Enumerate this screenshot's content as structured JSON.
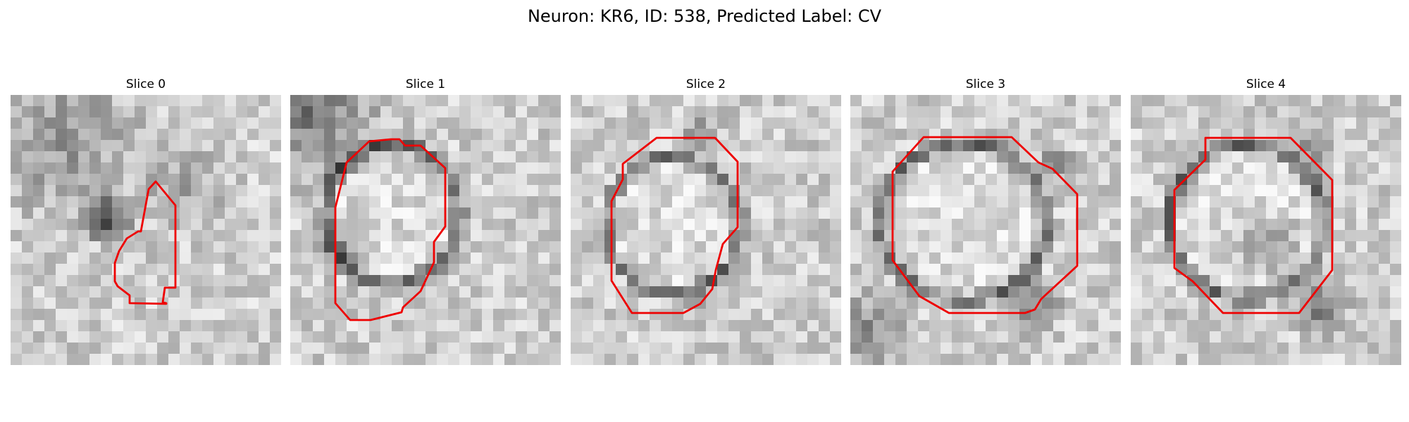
{
  "figure": {
    "title": "Neuron: KR6, ID: 538, Predicted Label: CV",
    "contour_color": "#ee0000"
  },
  "slices": [
    {
      "title": "Slice 0"
    },
    {
      "title": "Slice 1"
    },
    {
      "title": "Slice 2"
    },
    {
      "title": "Slice 3"
    },
    {
      "title": "Slice 4"
    }
  ]
}
